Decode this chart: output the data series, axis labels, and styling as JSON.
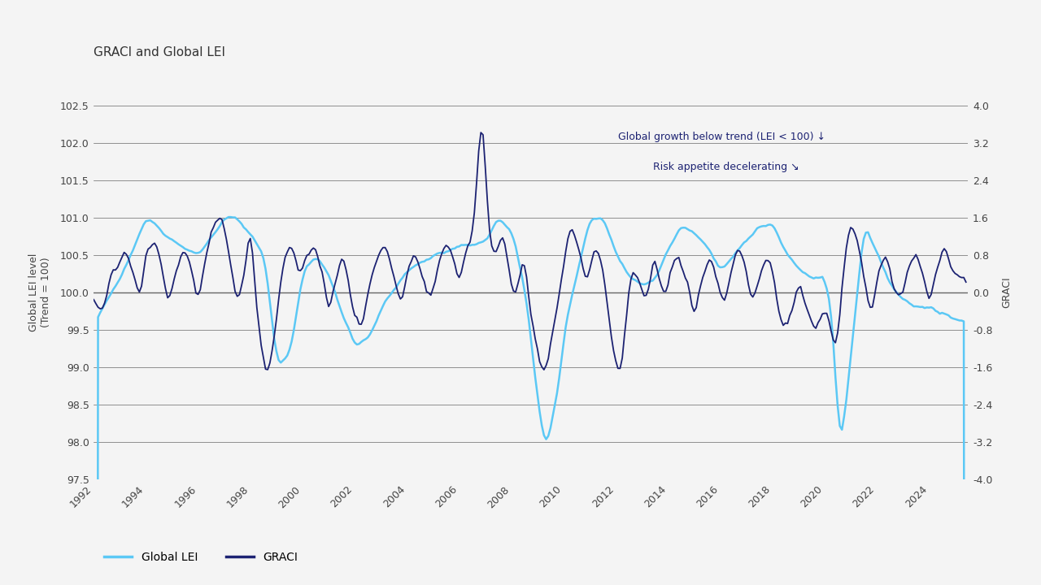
{
  "title": "GRACI and Global LEI",
  "ylabel_left": "Global LEI level\n(Trend = 100)",
  "ylabel_right": "GRACI",
  "ylim_left": [
    97.5,
    102.5
  ],
  "ylim_right": [
    -4.0,
    4.0
  ],
  "yticks_left": [
    97.5,
    98.0,
    98.5,
    99.0,
    99.5,
    100.0,
    100.5,
    101.0,
    101.5,
    102.0,
    102.5
  ],
  "yticks_right": [
    -4.0,
    -3.2,
    -2.4,
    -1.6,
    -0.8,
    0.0,
    0.8,
    1.6,
    2.4,
    3.2,
    4.0
  ],
  "xlim": [
    1992.0,
    2025.5
  ],
  "xticks": [
    1992,
    1994,
    1996,
    1998,
    2000,
    2002,
    2004,
    2006,
    2008,
    2010,
    2012,
    2014,
    2016,
    2018,
    2020,
    2022,
    2024
  ],
  "lei_color": "#5BC8F5",
  "graci_color": "#1C2272",
  "background_color": "#F4F4F4",
  "annotation1": "Global growth below trend (LEI < 100) ↓",
  "annotation2": "Risk appetite decelerating ↘",
  "annotation_color": "#1C2272",
  "legend_lei": "Global LEI",
  "legend_graci": "GRACI",
  "hline_color": "#666666",
  "bold_hline_color": "#222222"
}
